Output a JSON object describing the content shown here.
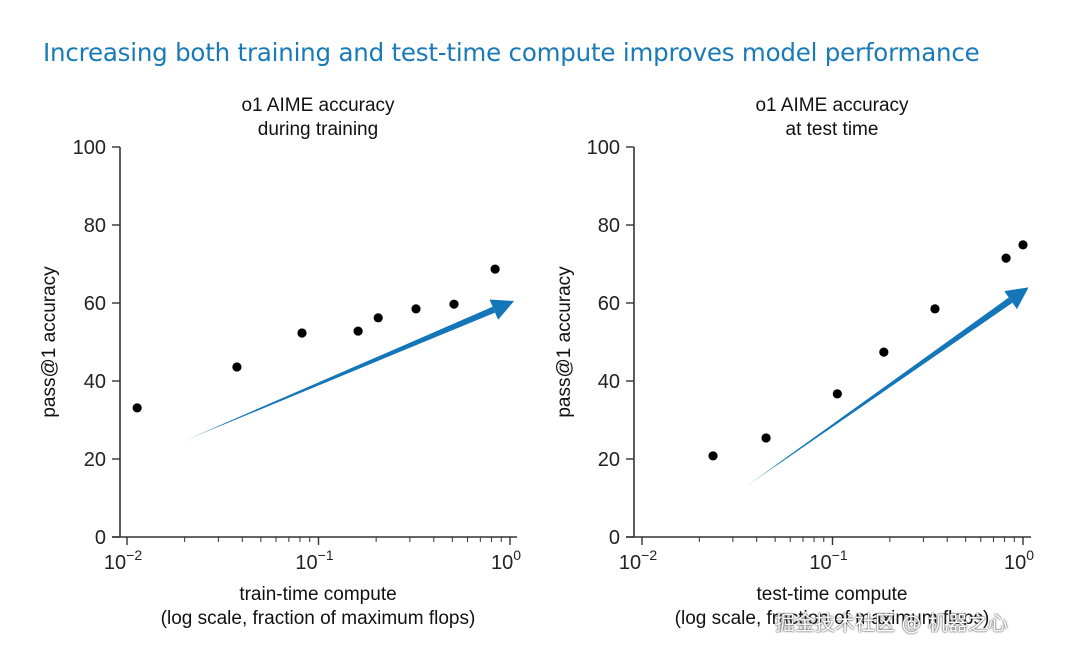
{
  "headline": "Increasing both training and test-time compute improves model performance",
  "watermark": "掘金技术社区 @ 机器之心",
  "colors": {
    "headline": "#1a7ab8",
    "arrow": "#1376b8",
    "points": "#000000",
    "axis": "#333333"
  },
  "chart_data": [
    {
      "type": "scatter",
      "title": "o1 AIME accuracy\nduring training",
      "title_lines": [
        "o1 AIME accuracy",
        "during training"
      ],
      "xlabel_lines": [
        "train-time compute",
        "(log scale, fraction of maximum flops)"
      ],
      "ylabel": "pass@1 accuracy",
      "xscale": "log",
      "xlim": [
        0.01,
        1
      ],
      "ylim": [
        0,
        100
      ],
      "yticks": [
        0,
        20,
        40,
        60,
        80,
        100
      ],
      "xticks": [
        {
          "value": 0.01,
          "base": "10",
          "exp": "−2"
        },
        {
          "value": 0.1,
          "base": "10",
          "exp": "−1"
        },
        {
          "value": 1,
          "base": "10",
          "exp": "0"
        }
      ],
      "grid": false,
      "points": [
        {
          "x": 0.0113,
          "y": 33.1
        },
        {
          "x": 0.0375,
          "y": 43.6
        },
        {
          "x": 0.082,
          "y": 52.3
        },
        {
          "x": 0.161,
          "y": 52.8
        },
        {
          "x": 0.205,
          "y": 56.2
        },
        {
          "x": 0.323,
          "y": 58.5
        },
        {
          "x": 0.51,
          "y": 59.7
        },
        {
          "x": 0.836,
          "y": 68.7
        }
      ],
      "trend_arrow": {
        "from": {
          "x": 0.0185,
          "y": 24
        },
        "to": {
          "x": 1.05,
          "y": 60.5
        }
      }
    },
    {
      "type": "scatter",
      "title": "o1 AIME accuracy\nat test time",
      "title_lines": [
        "o1 AIME accuracy",
        "at test time"
      ],
      "xlabel_lines": [
        "test-time compute",
        "(log scale, fraction of maximum flops)"
      ],
      "ylabel": "pass@1 accuracy",
      "xscale": "log",
      "xlim": [
        0.01,
        1
      ],
      "ylim": [
        0,
        100
      ],
      "yticks": [
        0,
        20,
        40,
        60,
        80,
        100
      ],
      "xticks": [
        {
          "value": 0.01,
          "base": "10",
          "exp": "−2"
        },
        {
          "value": 0.1,
          "base": "10",
          "exp": "−1"
        },
        {
          "value": 1,
          "base": "10",
          "exp": "0"
        }
      ],
      "grid": false,
      "points": [
        {
          "x": 0.0236,
          "y": 20.8
        },
        {
          "x": 0.0448,
          "y": 25.4
        },
        {
          "x": 0.106,
          "y": 36.7
        },
        {
          "x": 0.186,
          "y": 47.4
        },
        {
          "x": 0.345,
          "y": 58.5
        },
        {
          "x": 0.815,
          "y": 71.5
        },
        {
          "x": 1.0,
          "y": 74.9
        }
      ],
      "trend_arrow": {
        "from": {
          "x": 0.033,
          "y": 12
        },
        "to": {
          "x": 1.07,
          "y": 64
        }
      }
    }
  ]
}
